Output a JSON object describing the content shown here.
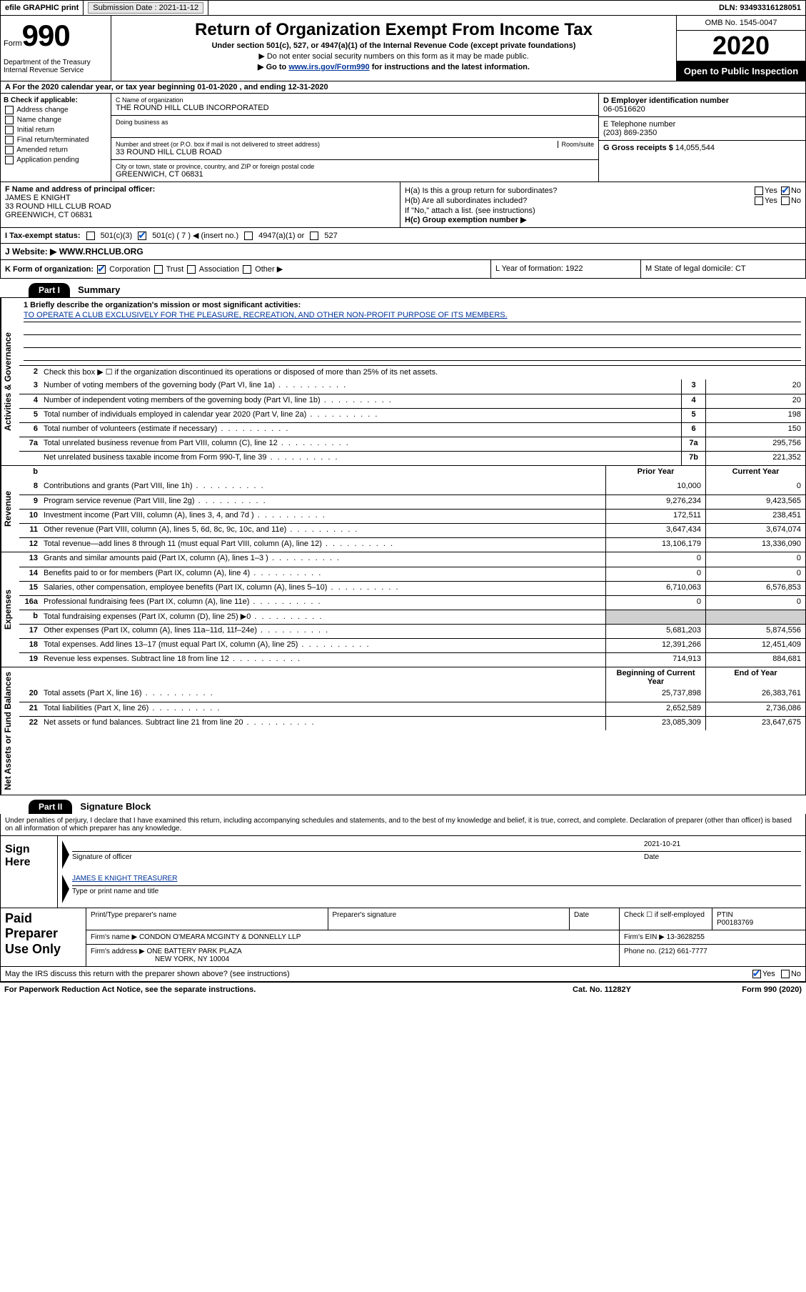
{
  "topbar": {
    "efile": "efile GRAPHIC print",
    "submission_label": "Submission Date : 2021-11-12",
    "dln": "DLN: 93493316128051"
  },
  "header": {
    "form_word": "Form",
    "form_num": "990",
    "title": "Return of Organization Exempt From Income Tax",
    "sub1": "Under section 501(c), 527, or 4947(a)(1) of the Internal Revenue Code (except private foundations)",
    "sub2": "▶ Do not enter social security numbers on this form as it may be made public.",
    "sub3_pre": "▶ Go to ",
    "sub3_link": "www.irs.gov/Form990",
    "sub3_post": " for instructions and the latest information.",
    "omb": "OMB No. 1545-0047",
    "year": "2020",
    "open": "Open to Public Inspection",
    "dept": "Department of the Treasury\nInternal Revenue Service"
  },
  "rowA": "A   For the 2020 calendar year, or tax year beginning 01-01-2020    , and ending 12-31-2020",
  "colB": {
    "label": "B Check if applicable:",
    "opts": [
      "Address change",
      "Name change",
      "Initial return",
      "Final return/terminated",
      "Amended return",
      "Application pending"
    ]
  },
  "colC": {
    "name_label": "C Name of organization",
    "name": "THE ROUND HILL CLUB INCORPORATED",
    "dba_label": "Doing business as",
    "street_label": "Number and street (or P.O. box if mail is not delivered to street address)",
    "room_label": "Room/suite",
    "street": "33 ROUND HILL CLUB ROAD",
    "city_label": "City or town, state or province, country, and ZIP or foreign postal code",
    "city": "GREENWICH, CT  06831"
  },
  "colD": {
    "ein_label": "D Employer identification number",
    "ein": "06-0516620",
    "tel_label": "E Telephone number",
    "tel": "(203) 869-2350",
    "gross_label": "G Gross receipts $",
    "gross": "14,055,544"
  },
  "rowF": {
    "label": "F Name and address of principal officer:",
    "name": "JAMES E KNIGHT",
    "addr1": "33 ROUND HILL CLUB ROAD",
    "addr2": "GREENWICH, CT  06831"
  },
  "rowH": {
    "ha": "H(a)  Is this a group return for subordinates?",
    "hb": "H(b)  Are all subordinates included?",
    "hb_note": "If \"No,\" attach a list. (see instructions)",
    "hc": "H(c)  Group exemption number ▶"
  },
  "rowI": {
    "label": "I   Tax-exempt status:",
    "o1": "501(c)(3)",
    "o2": "501(c) ( 7 ) ◀ (insert no.)",
    "o3": "4947(a)(1) or",
    "o4": "527"
  },
  "rowJ": {
    "label": "J   Website: ▶",
    "value": "WWW.RHCLUB.ORG"
  },
  "rowK": {
    "label": "K Form of organization:",
    "opts": [
      "Corporation",
      "Trust",
      "Association",
      "Other ▶"
    ],
    "L": "L Year of formation: 1922",
    "M": "M State of legal domicile: CT"
  },
  "part1": {
    "header": "Part I",
    "title": "Summary"
  },
  "vtabs": {
    "ag": "Activities & Governance",
    "rev": "Revenue",
    "exp": "Expenses",
    "na": "Net Assets or Fund Balances"
  },
  "mission": {
    "label": "1   Briefly describe the organization's mission or most significant activities:",
    "text": "TO OPERATE A CLUB EXCLUSIVELY FOR THE PLEASURE, RECREATION, AND OTHER NON-PROFIT PURPOSE OF ITS MEMBERS."
  },
  "line2": "Check this box ▶ ☐  if the organization discontinued its operations or disposed of more than 25% of its net assets.",
  "lines_gov": [
    {
      "n": "3",
      "d": "Number of voting members of the governing body (Part VI, line 1a)",
      "b": "3",
      "v": "20"
    },
    {
      "n": "4",
      "d": "Number of independent voting members of the governing body (Part VI, line 1b)",
      "b": "4",
      "v": "20"
    },
    {
      "n": "5",
      "d": "Total number of individuals employed in calendar year 2020 (Part V, line 2a)",
      "b": "5",
      "v": "198"
    },
    {
      "n": "6",
      "d": "Total number of volunteers (estimate if necessary)",
      "b": "6",
      "v": "150"
    },
    {
      "n": "7a",
      "d": "Total unrelated business revenue from Part VIII, column (C), line 12",
      "b": "7a",
      "v": "295,756"
    },
    {
      "n": "",
      "d": "Net unrelated business taxable income from Form 990-T, line 39",
      "b": "7b",
      "v": "221,352"
    }
  ],
  "col_headers": {
    "b_blank": "b",
    "prior": "Prior Year",
    "current": "Current Year"
  },
  "lines_rev": [
    {
      "n": "8",
      "d": "Contributions and grants (Part VIII, line 1h)",
      "p": "10,000",
      "c": "0"
    },
    {
      "n": "9",
      "d": "Program service revenue (Part VIII, line 2g)",
      "p": "9,276,234",
      "c": "9,423,565"
    },
    {
      "n": "10",
      "d": "Investment income (Part VIII, column (A), lines 3, 4, and 7d )",
      "p": "172,511",
      "c": "238,451"
    },
    {
      "n": "11",
      "d": "Other revenue (Part VIII, column (A), lines 5, 6d, 8c, 9c, 10c, and 11e)",
      "p": "3,647,434",
      "c": "3,674,074"
    },
    {
      "n": "12",
      "d": "Total revenue—add lines 8 through 11 (must equal Part VIII, column (A), line 12)",
      "p": "13,106,179",
      "c": "13,336,090"
    }
  ],
  "lines_exp": [
    {
      "n": "13",
      "d": "Grants and similar amounts paid (Part IX, column (A), lines 1–3 )",
      "p": "0",
      "c": "0"
    },
    {
      "n": "14",
      "d": "Benefits paid to or for members (Part IX, column (A), line 4)",
      "p": "0",
      "c": "0"
    },
    {
      "n": "15",
      "d": "Salaries, other compensation, employee benefits (Part IX, column (A), lines 5–10)",
      "p": "6,710,063",
      "c": "6,576,853"
    },
    {
      "n": "16a",
      "d": "Professional fundraising fees (Part IX, column (A), line 11e)",
      "p": "0",
      "c": "0"
    },
    {
      "n": "b",
      "d": "Total fundraising expenses (Part IX, column (D), line 25) ▶0",
      "p": "",
      "c": "",
      "grey": true
    },
    {
      "n": "17",
      "d": "Other expenses (Part IX, column (A), lines 11a–11d, 11f–24e)",
      "p": "5,681,203",
      "c": "5,874,556"
    },
    {
      "n": "18",
      "d": "Total expenses. Add lines 13–17 (must equal Part IX, column (A), line 25)",
      "p": "12,391,266",
      "c": "12,451,409"
    },
    {
      "n": "19",
      "d": "Revenue less expenses. Subtract line 18 from line 12",
      "p": "714,913",
      "c": "884,681"
    }
  ],
  "na_headers": {
    "begin": "Beginning of Current Year",
    "end": "End of Year"
  },
  "lines_na": [
    {
      "n": "20",
      "d": "Total assets (Part X, line 16)",
      "p": "25,737,898",
      "c": "26,383,761"
    },
    {
      "n": "21",
      "d": "Total liabilities (Part X, line 26)",
      "p": "2,652,589",
      "c": "2,736,086"
    },
    {
      "n": "22",
      "d": "Net assets or fund balances. Subtract line 21 from line 20",
      "p": "23,085,309",
      "c": "23,647,675"
    }
  ],
  "part2": {
    "header": "Part II",
    "title": "Signature Block"
  },
  "perjury": "Under penalties of perjury, I declare that I have examined this return, including accompanying schedules and statements, and to the best of my knowledge and belief, it is true, correct, and complete. Declaration of preparer (other than officer) is based on all information of which preparer has any knowledge.",
  "sign": {
    "label": "Sign Here",
    "sig_label": "Signature of officer",
    "date_label": "Date",
    "date": "2021-10-21",
    "name": "JAMES E KNIGHT  TREASURER",
    "name_label": "Type or print name and title"
  },
  "paid": {
    "label": "Paid Preparer Use Only",
    "col1": "Print/Type preparer's name",
    "col2": "Preparer's signature",
    "col3": "Date",
    "col4_label": "Check ☐ if self-employed",
    "ptin_label": "PTIN",
    "ptin": "P00183769",
    "firm_label": "Firm's name   ▶",
    "firm": "CONDON O'MEARA MCGINTY & DONNELLY LLP",
    "ein_label": "Firm's EIN ▶",
    "ein": "13-3628255",
    "addr_label": "Firm's address ▶",
    "addr1": "ONE BATTERY PARK PLAZA",
    "addr2": "NEW YORK, NY  10004",
    "phone_label": "Phone no.",
    "phone": "(212) 661-7777"
  },
  "discuss": "May the IRS discuss this return with the preparer shown above? (see instructions)",
  "footer": {
    "left": "For Paperwork Reduction Act Notice, see the separate instructions.",
    "mid": "Cat. No. 11282Y",
    "right": "Form 990 (2020)"
  },
  "yn": {
    "yes": "Yes",
    "no": "No"
  }
}
